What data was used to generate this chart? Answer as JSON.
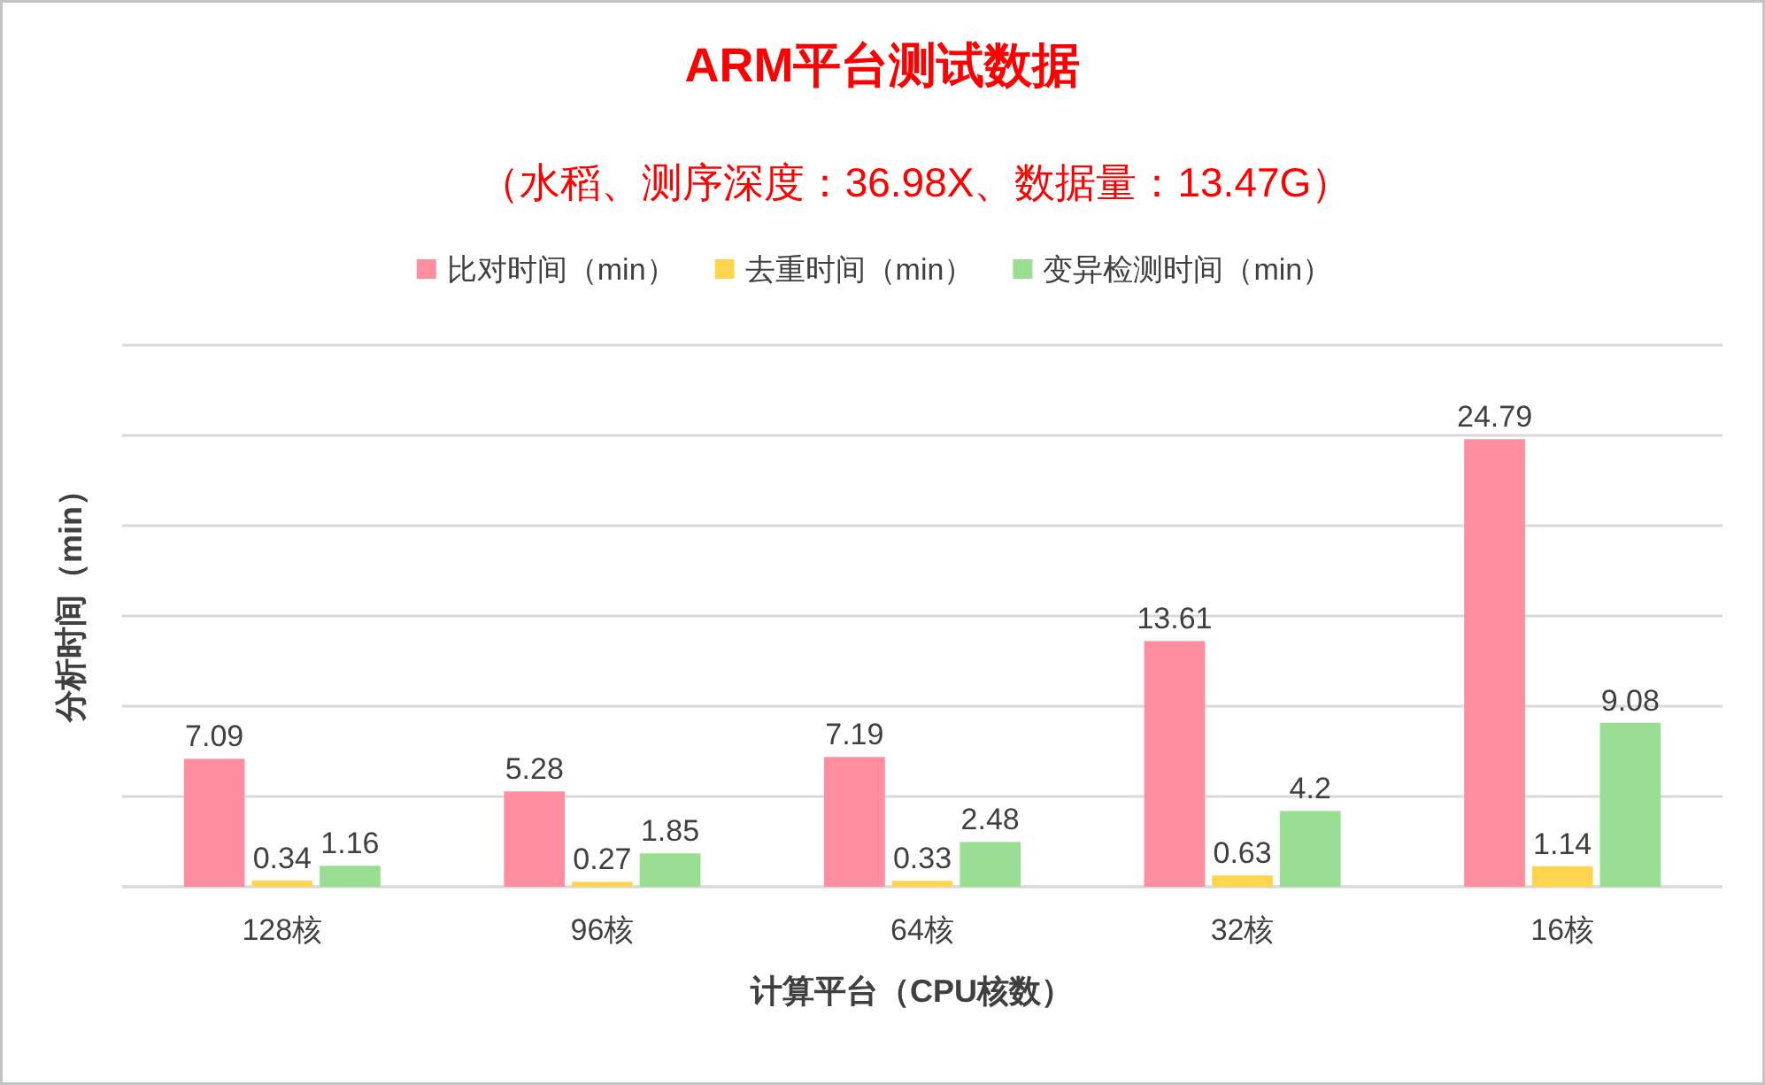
{
  "chart_data": {
    "type": "bar",
    "title": "ARM平台测试数据",
    "subtitle": "（水稻、测序深度：36.98X、数据量：13.47G）",
    "xlabel": "计算平台（CPU核数）",
    "ylabel": "分析时间（min）",
    "categories": [
      "128核",
      "96核",
      "64核",
      "32核",
      "16核"
    ],
    "series": [
      {
        "name": "比对时间（min）",
        "color": "#ff8fa0",
        "values": [
          7.09,
          5.28,
          7.19,
          13.61,
          24.79
        ]
      },
      {
        "name": "去重时间（min）",
        "color": "#ffd54f",
        "values": [
          0.34,
          0.27,
          0.33,
          0.63,
          1.14
        ]
      },
      {
        "name": "变异检测时间（min）",
        "color": "#9ade94",
        "values": [
          1.16,
          1.85,
          2.48,
          4.2,
          9.08
        ]
      }
    ],
    "ylim": [
      0,
      30
    ],
    "yticks": [
      {
        "value": 0,
        "label": null
      },
      {
        "value": 5,
        "label": null
      },
      {
        "value": 10,
        "label": null
      },
      {
        "value": 15,
        "label": null
      },
      {
        "value": 20,
        "label": null
      },
      {
        "value": 25,
        "label": null
      },
      {
        "value": 30,
        "label": null
      }
    ],
    "grid": "y",
    "legend": "top",
    "tick_labels": "x",
    "data_labels": true
  }
}
